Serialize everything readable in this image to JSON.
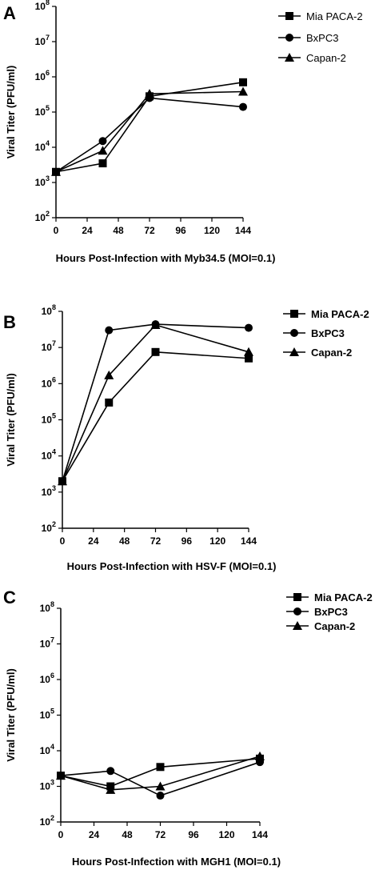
{
  "chart_data": [
    {
      "panel": "A",
      "type": "line",
      "xlabel": "Hours Post-Infection with Myb34.5 (MOI=0.1)",
      "ylabel": "Viral Titer (PFU/ml)",
      "x_ticks": [
        "0",
        "24",
        "48",
        "72",
        "96",
        "120",
        "144"
      ],
      "xlim": [
        0,
        144
      ],
      "y_scale": "log",
      "ylim": [
        100,
        100000000
      ],
      "y_ticks": [
        2,
        3,
        4,
        5,
        6,
        7,
        8
      ],
      "legend_position": "top-right",
      "series": [
        {
          "name": "Mia PACA-2",
          "marker": "square",
          "x": [
            0,
            36,
            72,
            144
          ],
          "y": [
            2000,
            3500,
            280000,
            700000
          ]
        },
        {
          "name": "BxPC3",
          "marker": "circle",
          "x": [
            0,
            36,
            72,
            144
          ],
          "y": [
            2000,
            15000,
            250000,
            140000
          ]
        },
        {
          "name": "Capan-2",
          "marker": "triangle",
          "x": [
            0,
            36,
            72,
            144
          ],
          "y": [
            2000,
            8000,
            330000,
            380000
          ]
        }
      ]
    },
    {
      "panel": "B",
      "type": "line",
      "xlabel": "Hours Post-Infection with HSV-F (MOI=0.1)",
      "ylabel": "Viral Titer (PFU/ml)",
      "x_ticks": [
        "0",
        "24",
        "48",
        "72",
        "96",
        "120",
        "144"
      ],
      "xlim": [
        0,
        144
      ],
      "y_scale": "log",
      "ylim": [
        100,
        100000000
      ],
      "y_ticks": [
        2,
        3,
        4,
        5,
        6,
        7,
        8
      ],
      "legend_position": "top-right",
      "series": [
        {
          "name": "Mia PACA-2",
          "marker": "square",
          "x": [
            0,
            36,
            72,
            144
          ],
          "y": [
            2000,
            300000,
            7500000,
            5000000
          ]
        },
        {
          "name": "BxPC3",
          "marker": "circle",
          "x": [
            0,
            36,
            72,
            144
          ],
          "y": [
            2000,
            30000000,
            44000000,
            35000000
          ]
        },
        {
          "name": "Capan-2",
          "marker": "triangle",
          "x": [
            0,
            36,
            72,
            144
          ],
          "y": [
            2000,
            1700000,
            42000000,
            7500000
          ]
        }
      ]
    },
    {
      "panel": "C",
      "type": "line",
      "xlabel": "Hours Post-Infection with MGH1 (MOI=0.1)",
      "ylabel": "Viral Titer (PFU/ml)",
      "x_ticks": [
        "0",
        "24",
        "48",
        "72",
        "96",
        "120",
        "144"
      ],
      "xlim": [
        0,
        144
      ],
      "y_scale": "log",
      "ylim": [
        100,
        100000000
      ],
      "y_ticks": [
        2,
        3,
        4,
        5,
        6,
        7,
        8
      ],
      "legend_position": "top-right",
      "series": [
        {
          "name": "Mia PACA-2",
          "marker": "square",
          "x": [
            0,
            36,
            72,
            144
          ],
          "y": [
            2000,
            1000,
            3500,
            6000
          ]
        },
        {
          "name": "BxPC3",
          "marker": "circle",
          "x": [
            0,
            36,
            72,
            144
          ],
          "y": [
            2000,
            2700,
            550,
            4800
          ]
        },
        {
          "name": "Capan-2",
          "marker": "triangle",
          "x": [
            0,
            36,
            72,
            144
          ],
          "y": [
            2000,
            800,
            1000,
            7000
          ]
        }
      ]
    }
  ]
}
